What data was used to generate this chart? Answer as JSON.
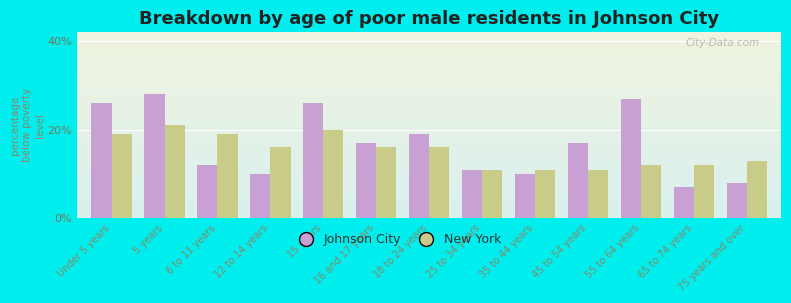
{
  "title": "Breakdown by age of poor male residents in Johnson City",
  "ylabel": "percentage\nbelow poverty\nlevel",
  "categories": [
    "Under 5 years",
    "5 years",
    "6 to 11 years",
    "12 to 14 years",
    "15 years",
    "16 and 17 years",
    "18 to 24 years",
    "25 to 34 years",
    "35 to 44 years",
    "45 to 54 years",
    "55 to 64 years",
    "65 to 74 years",
    "75 years and over"
  ],
  "johnson_city": [
    26,
    28,
    12,
    10,
    26,
    17,
    19,
    11,
    10,
    17,
    27,
    7,
    8
  ],
  "new_york": [
    19,
    21,
    19,
    16,
    20,
    16,
    16,
    11,
    11,
    11,
    12,
    12,
    13
  ],
  "johnson_city_color": "#c8a0d4",
  "new_york_color": "#c8cc88",
  "background_color": "#00eeee",
  "plot_bg_top": "#f0f4e0",
  "plot_bg_bottom": "#daf0ee",
  "ylim": [
    0,
    42
  ],
  "yticks": [
    0,
    20,
    40
  ],
  "ytick_labels": [
    "0%",
    "20%",
    "40%"
  ],
  "bar_width": 0.38,
  "title_fontsize": 13,
  "legend_labels": [
    "Johnson City",
    "New York"
  ],
  "watermark": "City-Data.com",
  "tick_color": "#888866",
  "ylabel_color": "#888866",
  "title_color": "#222222"
}
